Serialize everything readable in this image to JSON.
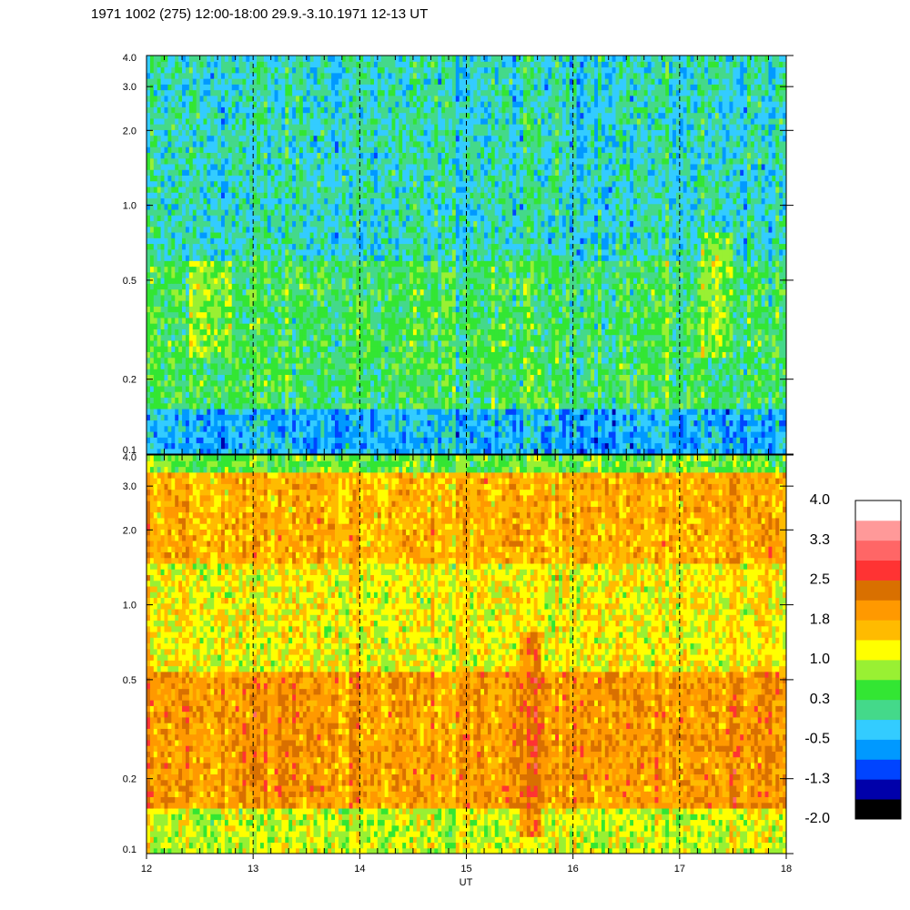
{
  "chart_data": {
    "type": "heatmap",
    "title": "1971 1002 (275) 12:00-18:00 29.9.-3.10.1971  12-13 UT",
    "xlabel": "UT",
    "x_ticks": [
      "12",
      "13",
      "14",
      "15",
      "16",
      "17",
      "18"
    ],
    "xlim": [
      12,
      18
    ],
    "hour_markers": [
      13,
      14,
      15,
      16,
      17
    ],
    "y_scale": "log",
    "ylim": [
      0.1,
      4.0
    ],
    "y_ticks": [
      {
        "value": 0.1,
        "label": "0.1"
      },
      {
        "value": 0.2,
        "label": "0.2"
      },
      {
        "value": 0.5,
        "label": "0.5"
      },
      {
        "value": 1.0,
        "label": "1.0"
      },
      {
        "value": 2.0,
        "label": "2.0"
      },
      {
        "value": 3.0,
        "label": "3.0"
      },
      {
        "value": 4.0,
        "label": "4.0"
      }
    ],
    "panels": [
      {
        "id": "upper",
        "dominant_levels": [
          {
            "y_range": [
              0.1,
              0.15
            ],
            "level": -0.5
          },
          {
            "y_range": [
              0.15,
              0.6
            ],
            "level": 0.3
          },
          {
            "y_range": [
              0.6,
              4.0
            ],
            "level": -0.1
          }
        ],
        "highlights": [
          {
            "x_range": [
              12.4,
              12.8
            ],
            "y_range": [
              0.25,
              0.6
            ],
            "level": 1.0
          },
          {
            "x_range": [
              17.2,
              17.5
            ],
            "y_range": [
              0.25,
              0.8
            ],
            "level": 1.0
          }
        ]
      },
      {
        "id": "lower",
        "dominant_levels": [
          {
            "y_range": [
              0.1,
              0.15
            ],
            "level": 1.0
          },
          {
            "y_range": [
              0.15,
              0.55
            ],
            "level": 1.9
          },
          {
            "y_range": [
              0.55,
              1.5
            ],
            "level": 1.2
          },
          {
            "y_range": [
              1.5,
              3.5
            ],
            "level": 1.7
          },
          {
            "y_range": [
              3.5,
              4.0
            ],
            "level": 0.6
          }
        ],
        "highlights": [
          {
            "x_range": [
              12.9,
              13.4
            ],
            "y_range": [
              0.15,
              0.5
            ],
            "level": 2.1
          },
          {
            "x_range": [
              15.5,
              15.7
            ],
            "y_range": [
              0.12,
              0.8
            ],
            "level": 2.4
          }
        ]
      }
    ],
    "colorbar": {
      "labels": [
        "4.0",
        "3.3",
        "2.5",
        "1.8",
        "1.0",
        "0.3",
        "-0.5",
        "-1.3",
        "-2.0"
      ],
      "range": [
        -2.0,
        4.0
      ],
      "colors": [
        "#000000",
        "#0000aa",
        "#0044ff",
        "#0099ff",
        "#33ccff",
        "#44d98a",
        "#33e633",
        "#99f033",
        "#ffff00",
        "#ffbb00",
        "#ff9900",
        "#d97000",
        "#ff3333",
        "#ff6666",
        "#ff9999",
        "#ffffff"
      ]
    }
  }
}
